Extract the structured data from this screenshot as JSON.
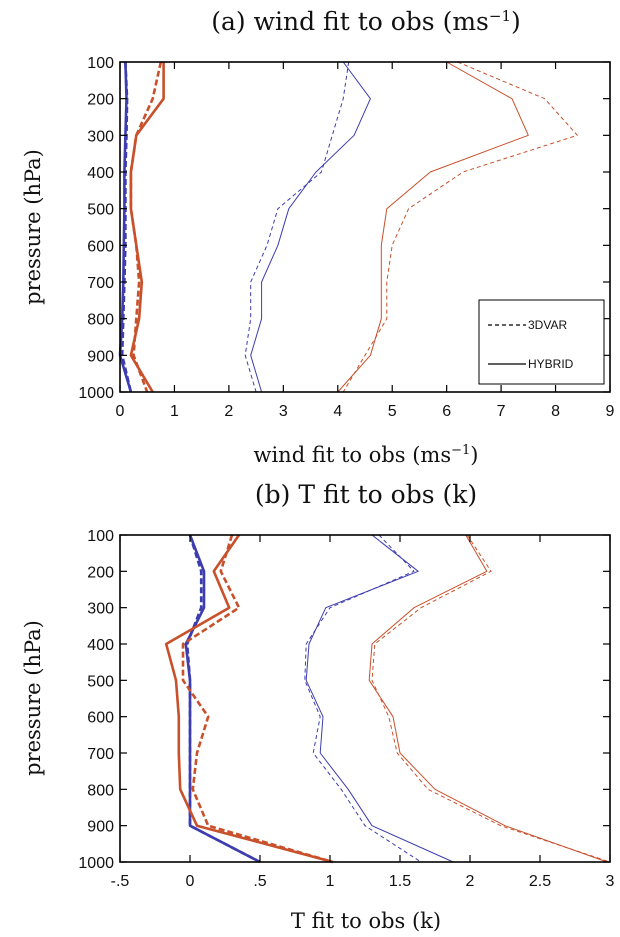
{
  "colors": {
    "blue": "#3d3daf",
    "red": "#c8502a",
    "legend_line": "#000000"
  },
  "legend": {
    "dashed_label": "3DVAR",
    "solid_label": "HYBRID",
    "placement": "lower-right of panel (a)"
  },
  "chart_data": [
    {
      "type": "line",
      "panel": "a",
      "title": "(a) wind fit to obs (ms",
      "title_sup": "−1",
      "title_end": ")",
      "xlabel": "wind fit to obs (ms",
      "xlabel_sup": "−1",
      "xlabel_end": ")",
      "ylabel": "pressure (hPa)",
      "xlim": [
        0,
        9
      ],
      "ylim": [
        1000,
        100
      ],
      "y_inverted": true,
      "xticks": [
        "0",
        "1",
        "2",
        "3",
        "4",
        "5",
        "6",
        "7",
        "8",
        "9"
      ],
      "yticks": [
        "100",
        "200",
        "300",
        "400",
        "500",
        "600",
        "700",
        "800",
        "900",
        "1000"
      ],
      "pressure": [
        100,
        200,
        300,
        400,
        500,
        600,
        700,
        800,
        900,
        1000
      ],
      "series": [
        {
          "color_key": "blue",
          "style": "dashed",
          "width": "thin",
          "x": [
            4.2,
            4.1,
            3.9,
            3.7,
            2.9,
            2.7,
            2.4,
            2.4,
            2.3,
            2.5
          ]
        },
        {
          "color_key": "blue",
          "style": "solid",
          "width": "thin",
          "x": [
            4.1,
            4.6,
            4.3,
            3.6,
            3.1,
            2.9,
            2.6,
            2.6,
            2.4,
            2.6
          ]
        },
        {
          "color_key": "red",
          "style": "dashed",
          "width": "thin",
          "x": [
            6.2,
            7.8,
            8.4,
            6.3,
            5.3,
            5.0,
            4.9,
            4.9,
            4.5,
            4.1
          ]
        },
        {
          "color_key": "red",
          "style": "solid",
          "width": "thin",
          "x": [
            6.0,
            7.2,
            7.5,
            5.7,
            4.9,
            4.8,
            4.8,
            4.8,
            4.6,
            4.0
          ]
        },
        {
          "color_key": "blue",
          "style": "dashed",
          "width": "thick",
          "x": [
            0.1,
            0.13,
            0.12,
            0.1,
            0.1,
            0.1,
            0.08,
            0.06,
            0.04,
            0.2
          ]
        },
        {
          "color_key": "blue",
          "style": "solid",
          "width": "thick",
          "x": [
            0.1,
            0.12,
            0.1,
            0.08,
            0.08,
            0.07,
            0.06,
            0.04,
            0.0,
            0.2
          ]
        },
        {
          "color_key": "red",
          "style": "dashed",
          "width": "thick",
          "x": [
            0.75,
            0.6,
            0.3,
            0.2,
            0.2,
            0.3,
            0.35,
            0.3,
            0.25,
            0.5
          ]
        },
        {
          "color_key": "red",
          "style": "solid",
          "width": "thick",
          "x": [
            0.8,
            0.8,
            0.3,
            0.2,
            0.2,
            0.3,
            0.4,
            0.35,
            0.2,
            0.6
          ]
        }
      ]
    },
    {
      "type": "line",
      "panel": "b",
      "title": "(b) T fit to obs (k)",
      "title_sup": "",
      "title_end": "",
      "xlabel": "T fit to obs (k)",
      "xlabel_sup": "",
      "xlabel_end": "",
      "ylabel": "pressure (hPa)",
      "xlim": [
        -0.5,
        3
      ],
      "ylim": [
        1000,
        100
      ],
      "y_inverted": true,
      "xticks": [
        "-.5",
        "0",
        ".5",
        "1",
        "1.5",
        "2",
        "2.5",
        "3"
      ],
      "yticks": [
        "100",
        "200",
        "300",
        "400",
        "500",
        "600",
        "700",
        "800",
        "900",
        "1000"
      ],
      "pressure": [
        100,
        200,
        300,
        400,
        500,
        600,
        700,
        800,
        900,
        1000
      ],
      "series": [
        {
          "color_key": "blue",
          "style": "dashed",
          "width": "thin",
          "x": [
            1.35,
            1.6,
            1.0,
            0.83,
            0.82,
            0.93,
            0.88,
            1.08,
            1.25,
            1.65
          ]
        },
        {
          "color_key": "blue",
          "style": "solid",
          "width": "thin",
          "x": [
            1.3,
            1.63,
            0.97,
            0.85,
            0.83,
            0.95,
            0.93,
            1.13,
            1.3,
            1.88
          ]
        },
        {
          "color_key": "red",
          "style": "dashed",
          "width": "thin",
          "x": [
            1.98,
            2.15,
            1.65,
            1.32,
            1.3,
            1.42,
            1.48,
            1.7,
            2.22,
            3.0
          ]
        },
        {
          "color_key": "red",
          "style": "solid",
          "width": "thin",
          "x": [
            1.97,
            2.12,
            1.6,
            1.3,
            1.28,
            1.45,
            1.5,
            1.75,
            2.25,
            2.98
          ]
        },
        {
          "color_key": "blue",
          "style": "dashed",
          "width": "thick",
          "x": [
            0.0,
            0.08,
            0.08,
            -0.02,
            0.0,
            0.0,
            0.0,
            0.0,
            0.0,
            0.5
          ]
        },
        {
          "color_key": "blue",
          "style": "solid",
          "width": "thick",
          "x": [
            0.0,
            0.1,
            0.1,
            -0.03,
            0.0,
            0.0,
            0.0,
            0.0,
            0.0,
            0.5
          ]
        },
        {
          "color_key": "red",
          "style": "dashed",
          "width": "thick",
          "x": [
            0.3,
            0.22,
            0.35,
            -0.05,
            -0.05,
            0.13,
            0.05,
            0.02,
            0.13,
            1.02
          ]
        },
        {
          "color_key": "red",
          "style": "solid",
          "width": "thick",
          "x": [
            0.35,
            0.17,
            0.28,
            -0.17,
            -0.1,
            -0.08,
            -0.08,
            -0.07,
            0.05,
            1.02
          ]
        }
      ]
    }
  ]
}
